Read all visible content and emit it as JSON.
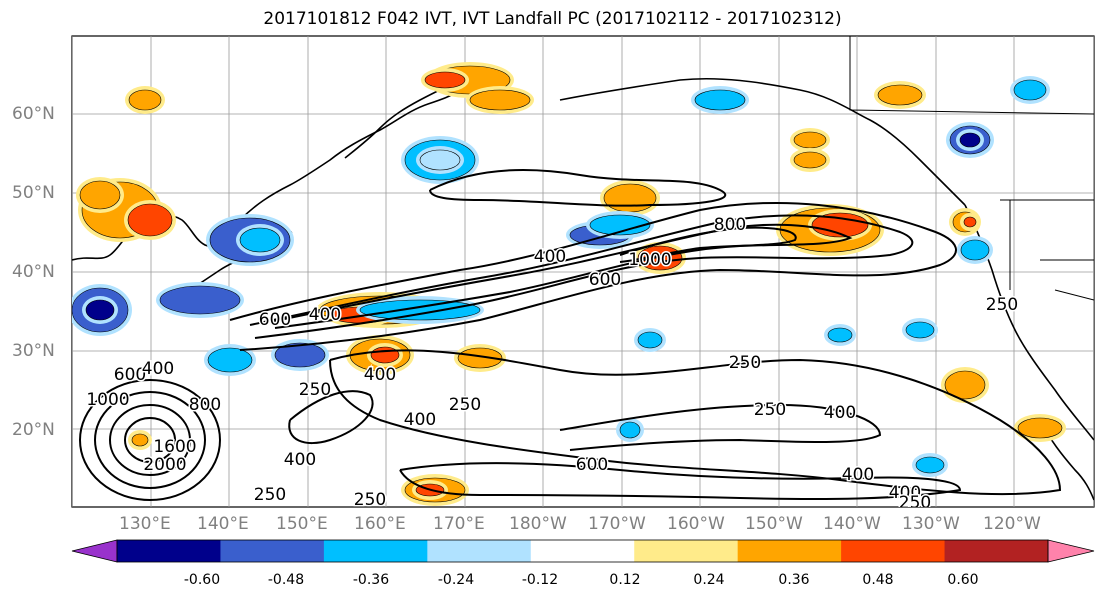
{
  "title": "2017101812 F042 IVT, IVT Landfall PC (2017102112 - 2017102312)",
  "lat_labels": [
    "60°N",
    "50°N",
    "40°N",
    "30°N",
    "20°N"
  ],
  "lon_labels": [
    "130°E",
    "140°E",
    "150°E",
    "160°E",
    "170°E",
    "180°W",
    "170°W",
    "160°W",
    "150°W",
    "140°W",
    "130°W",
    "120°W"
  ],
  "contour_labels": [
    "800",
    "1000",
    "400",
    "600",
    "600",
    "400",
    "400",
    "250",
    "400",
    "250",
    "250",
    "250",
    "400",
    "600",
    "1000",
    "800",
    "2000",
    "1600",
    "400",
    "600",
    "250",
    "400",
    "400",
    "250",
    "400",
    "250",
    "250"
  ],
  "colorbar": {
    "ticks": [
      "-0.60",
      "-0.48",
      "-0.36",
      "-0.24",
      "-0.12",
      "0.12",
      "0.24",
      "0.36",
      "0.48",
      "0.60"
    ],
    "colors": [
      "#9932cc",
      "#00008b",
      "#3a5fcd",
      "#00bfff",
      "#b0e2ff",
      "#ffffff",
      "#ffeb8a",
      "#ffa500",
      "#ff4500",
      "#b22222",
      "#ff82ab"
    ]
  }
}
